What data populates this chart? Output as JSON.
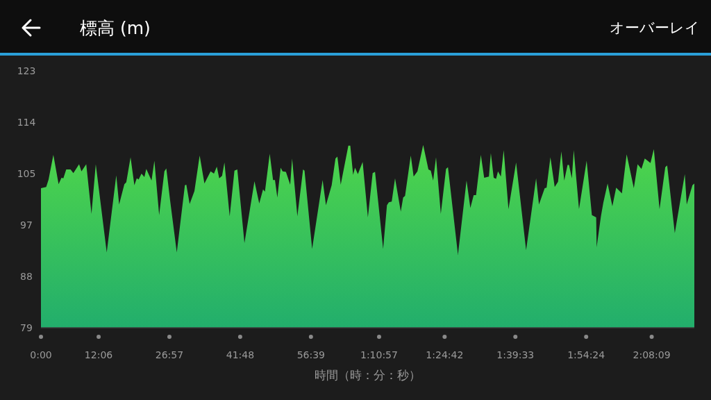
{
  "chart_data": {
    "type": "area",
    "title": "標高 (m)",
    "xlabel": "時間（時：分：秒）",
    "annotations": [
      "オーバーレイ"
    ],
    "color": "#4fd64a",
    "xlim": [
      0,
      137.1
    ],
    "ylim": [
      79,
      123
    ],
    "xticks": [
      {
        "value": 0,
        "label": "0:00"
      },
      {
        "value": 12.1,
        "label": "12:06"
      },
      {
        "value": 26.95,
        "label": "26:57"
      },
      {
        "value": 41.8,
        "label": "41:48"
      },
      {
        "value": 56.65,
        "label": "56:39"
      },
      {
        "value": 70.95,
        "label": "1:10:57"
      },
      {
        "value": 84.7,
        "label": "1:24:42"
      },
      {
        "value": 99.55,
        "label": "1:39:33"
      },
      {
        "value": 114.4,
        "label": "1:54:24"
      },
      {
        "value": 128.15,
        "label": "2:08:09"
      }
    ],
    "yticks": [
      79,
      {
        "value": 87.8,
        "label": "88"
      },
      {
        "value": 96.6,
        "label": "97"
      },
      {
        "value": 105.4,
        "label": "105"
      },
      {
        "value": 114.2,
        "label": "114"
      },
      123
    ],
    "x": [
      0,
      1.1,
      1.6,
      2.6,
      3.7,
      4.3,
      4.7,
      5.3,
      6.2,
      6.8,
      8.0,
      8.5,
      9.5,
      10.6,
      11.5,
      13.8,
      15.8,
      16.4,
      17.5,
      17.9,
      18.8,
      19.6,
      20.1,
      20.5,
      21.1,
      21.7,
      22.1,
      23.2,
      23.8,
      24.8,
      25.9,
      26.3,
      27.1,
      28.5,
      30.2,
      30.5,
      31.2,
      32.2,
      33.3,
      34.3,
      35.6,
      36.3,
      36.9,
      37.4,
      38.0,
      38.5,
      39.6,
      40.6,
      41.2,
      42.7,
      44.8,
      45.8,
      46.6,
      47.0,
      48.0,
      48.7,
      49.1,
      49.6,
      50.3,
      50.7,
      51.4,
      52.3,
      52.7,
      53.8,
      55.0,
      55.3,
      56.9,
      59.1,
      59.8,
      61.0,
      61.8,
      62.2,
      62.9,
      64.5,
      64.9,
      65.5,
      65.9,
      66.5,
      67.5,
      68.6,
      69.6,
      70.1,
      71.8,
      72.6,
      73.0,
      73.6,
      74.3,
      75.5,
      76.0,
      76.4,
      77.6,
      78.2,
      79.0,
      80.2,
      81.3,
      81.8,
      82.3,
      82.9,
      83.9,
      85.0,
      85.4,
      87.5,
      89.3,
      90.1,
      90.8,
      91.3,
      92.3,
      93.0,
      94.0,
      94.4,
      95.0,
      95.5,
      95.9,
      96.5,
      97.1,
      98.1,
      99.7,
      101.8,
      103.9,
      104.5,
      105.7,
      106.1,
      106.9,
      107.8,
      108.5,
      109.2,
      109.8,
      110.5,
      110.8,
      111.4,
      111.8,
      112.9,
      114.5,
      115.6,
      116.5,
      116.6,
      117.5,
      118.0,
      118.9,
      119.9,
      120.7,
      121.9,
      122.9,
      124.4,
      125.2,
      126.0,
      126.7,
      127.9,
      128.6,
      129.8,
      131.0,
      131.4,
      133.0,
      135.1,
      135.5,
      136.7,
      137.1
    ],
    "values": [
      102.9,
      103.1,
      104.4,
      108.6,
      103.6,
      104.7,
      104.6,
      106.1,
      106.1,
      105.5,
      107.0,
      105.8,
      107.0,
      98.5,
      107.0,
      91.9,
      105.1,
      100.1,
      103.6,
      103.9,
      108.2,
      103.4,
      104.6,
      104.4,
      105.4,
      104.8,
      106.2,
      104.2,
      107.6,
      98.3,
      105.8,
      106.3,
      100.8,
      91.9,
      103.4,
      103.5,
      100.2,
      102.4,
      108.5,
      103.7,
      105.8,
      105.4,
      106.6,
      104.6,
      105.0,
      107.3,
      98.1,
      105.9,
      106.1,
      93.5,
      104.1,
      100.3,
      102.7,
      102.3,
      108.8,
      104.3,
      104.3,
      101.3,
      106.4,
      105.8,
      105.7,
      103.5,
      108.0,
      98.1,
      106.1,
      105.9,
      92.5,
      104.3,
      100.0,
      103.4,
      108.0,
      108.3,
      103.5,
      110.2,
      110.2,
      105.2,
      106.4,
      105.3,
      107.4,
      97.9,
      105.5,
      105.7,
      92.5,
      100.0,
      100.5,
      100.6,
      104.6,
      98.9,
      101.3,
      101.6,
      108.5,
      104.9,
      105.8,
      110.3,
      106.1,
      105.9,
      104.2,
      108.2,
      98.5,
      106.2,
      106.5,
      91.5,
      104.2,
      99.5,
      101.7,
      101.7,
      108.6,
      104.7,
      104.9,
      108.9,
      104.7,
      104.5,
      105.8,
      104.9,
      109.4,
      99.3,
      107.3,
      92.3,
      104.6,
      100.1,
      102.9,
      103.0,
      108.2,
      103.1,
      104.0,
      109.2,
      104.2,
      106.9,
      106.9,
      104.6,
      109.4,
      99.3,
      107.6,
      98.3,
      97.9,
      92.8,
      98.1,
      100.4,
      103.7,
      99.8,
      103.0,
      102.0,
      108.7,
      102.9,
      107.0,
      106.2,
      108.0,
      107.2,
      109.6,
      99.3,
      106.5,
      106.8,
      95.2,
      105.3,
      100.1,
      103.4,
      103.7
    ]
  }
}
